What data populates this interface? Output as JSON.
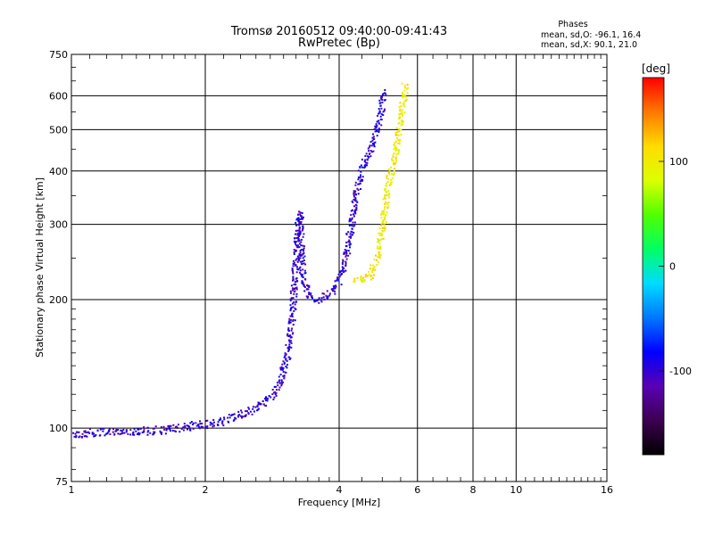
{
  "chart_data": {
    "type": "scatter",
    "title": "Tromsø 20160512 09:40:00-09:41:43",
    "subtitle": "RwPretec (Bp)",
    "xlabel": "Frequency [MHz]",
    "ylabel": "Stationary phase Virtual Height [km]",
    "x_scale": "log2",
    "y_scale": "log",
    "xlim": [
      1,
      16
    ],
    "ylim": [
      75,
      750
    ],
    "x_ticks": [
      1,
      2,
      4,
      6,
      8,
      10,
      16
    ],
    "y_ticks": [
      75,
      100,
      200,
      300,
      400,
      500,
      600,
      750
    ],
    "grid": true,
    "phases_box": {
      "title": "Phases",
      "line1": "mean, sd,O: -96.1, 16.4",
      "line2": "mean, sd,X:  90.1, 21.0"
    },
    "colorbar": {
      "label": "[deg]",
      "range": [
        -180,
        180
      ],
      "ticks": [
        100,
        0,
        -100
      ],
      "colormap": [
        "#000000",
        "#3c0050",
        "#5a00b4",
        "#0000ff",
        "#0078ff",
        "#00dcff",
        "#00ff64",
        "#50ff00",
        "#dcff00",
        "#ffdc00",
        "#ff7800",
        "#ff0000"
      ]
    },
    "series": [
      {
        "mode": "O",
        "phase_deg": -100,
        "trace": [
          [
            1.0,
            97
          ],
          [
            1.1,
            98
          ],
          [
            1.2,
            98
          ],
          [
            1.35,
            99
          ],
          [
            1.5,
            99
          ],
          [
            1.7,
            100
          ],
          [
            1.9,
            102
          ],
          [
            2.1,
            103
          ],
          [
            2.3,
            107
          ],
          [
            2.5,
            110
          ],
          [
            2.7,
            115
          ],
          [
            2.85,
            120
          ],
          [
            2.95,
            130
          ],
          [
            3.05,
            150
          ],
          [
            3.12,
            180
          ],
          [
            3.18,
            240
          ],
          [
            3.22,
            300
          ],
          [
            3.25,
            320
          ],
          [
            3.3,
            230
          ],
          [
            3.4,
            205
          ],
          [
            3.55,
            200
          ],
          [
            3.7,
            205
          ],
          [
            3.85,
            210
          ],
          [
            4.0,
            225
          ],
          [
            4.1,
            245
          ],
          [
            4.2,
            280
          ],
          [
            4.3,
            330
          ],
          [
            4.4,
            380
          ],
          [
            4.55,
            420
          ],
          [
            4.7,
            460
          ],
          [
            4.85,
            500
          ],
          [
            4.95,
            550
          ],
          [
            5.0,
            620
          ]
        ]
      },
      {
        "mode": "X",
        "phase_deg": 100,
        "trace": [
          [
            4.3,
            225
          ],
          [
            4.5,
            222
          ],
          [
            4.7,
            230
          ],
          [
            4.85,
            250
          ],
          [
            4.95,
            280
          ],
          [
            5.05,
            330
          ],
          [
            5.15,
            380
          ],
          [
            5.25,
            410
          ],
          [
            5.35,
            450
          ],
          [
            5.45,
            520
          ],
          [
            5.55,
            590
          ],
          [
            5.6,
            640
          ]
        ]
      }
    ]
  }
}
